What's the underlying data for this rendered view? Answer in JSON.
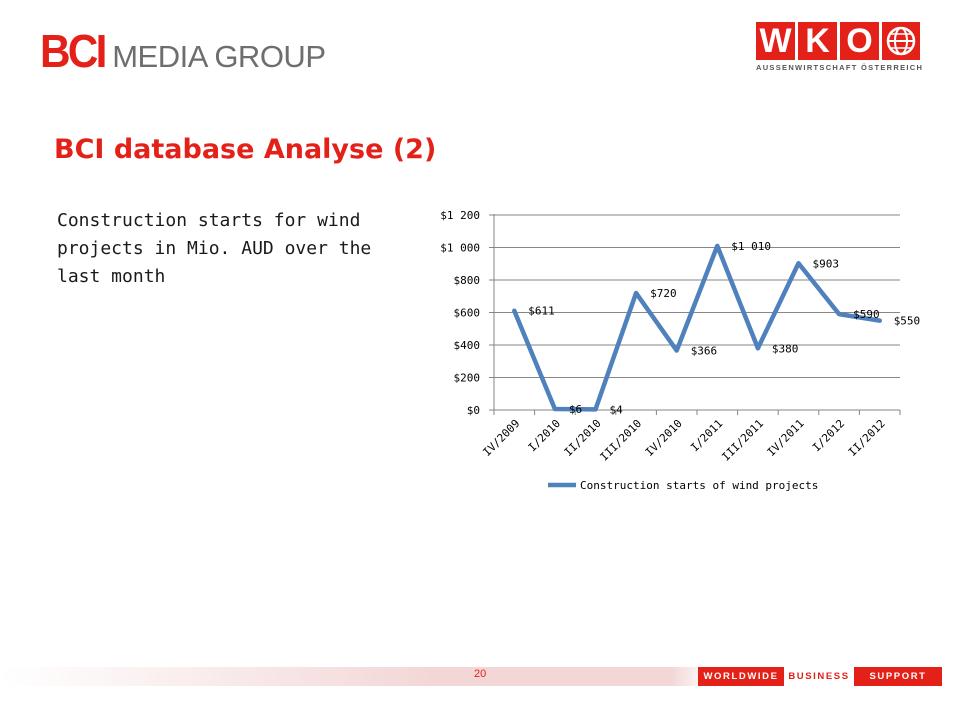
{
  "header": {
    "bci_logo": {
      "mark": "BCI",
      "text": "MEDIA GROUP"
    },
    "wko_logo": {
      "letters": [
        "W",
        "K",
        "O"
      ],
      "subtitle": "AUSSENWIRTSCHAFT ÖSTERREICH",
      "globe_icon": "globe-icon"
    }
  },
  "title": "BCI database Analyse (2)",
  "body_text": "Construction starts for wind projects in Mio. AUD over the last month",
  "colors": {
    "accent": "#e32119",
    "series": "#4f81bd",
    "grid": "#868686"
  },
  "chart_data": {
    "type": "line",
    "categories": [
      "IV/2009",
      "I/2010",
      "II/2010",
      "III/2010",
      "IV/2010",
      "I/2011",
      "III/2011",
      "IV/2011",
      "I/2012",
      "II/2012"
    ],
    "series": [
      {
        "name": "Construction starts of wind projects",
        "values": [
          611,
          6,
          4,
          720,
          366,
          1010,
          380,
          903,
          590,
          550
        ],
        "labels": [
          "$611",
          "$6",
          "$4",
          "$720",
          "$366",
          "$1 010",
          "$380",
          "$903",
          "$590",
          "$550"
        ]
      }
    ],
    "yticks": [
      "$0",
      "$200",
      "$400",
      "$600",
      "$800",
      "$1 000",
      "$1 200"
    ],
    "ylim": [
      0,
      1200
    ],
    "grid": true,
    "legend": "bottom"
  },
  "footer": {
    "page_number": "20",
    "tagline": [
      "WORLDWIDE",
      "BUSINESS",
      "SUPPORT"
    ]
  }
}
